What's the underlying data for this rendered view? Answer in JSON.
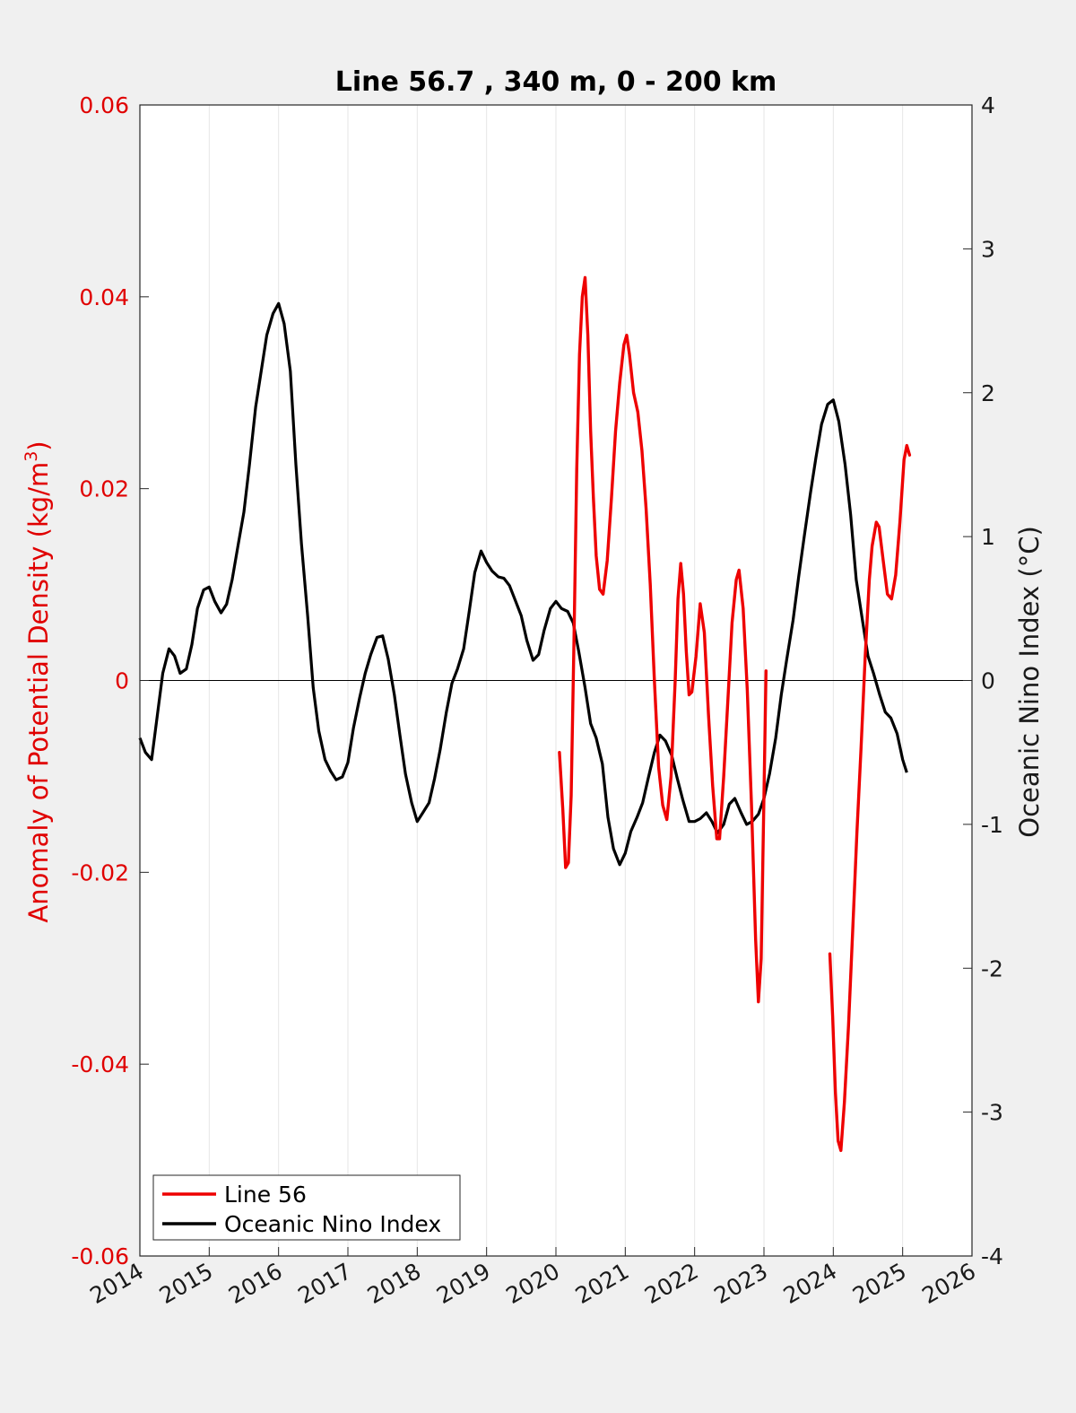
{
  "chart_data": {
    "type": "line",
    "title": "Line 56.7 , 340 m, 0 - 200 km",
    "ylabel_left": "Anomaly of Potential Density (kg/m",
    "ylabel_left_sup": "3",
    "ylabel_left_close": ")",
    "ylabel_right": "Oceanic Nino Index (°C)",
    "xlim": [
      2014,
      2026
    ],
    "ylim_left": [
      -0.06,
      0.06
    ],
    "ylim_right": [
      -4,
      4
    ],
    "x_ticks": [
      "2014",
      "2015",
      "2016",
      "2017",
      "2018",
      "2019",
      "2020",
      "2021",
      "2022",
      "2023",
      "2024",
      "2025",
      "2026"
    ],
    "y_left_ticks": [
      "-0.06",
      "-0.04",
      "-0.02",
      "0",
      "0.02",
      "0.04",
      "0.06"
    ],
    "y_right_ticks": [
      "-4",
      "-3",
      "-2",
      "-1",
      "0",
      "1",
      "2",
      "3",
      "4"
    ],
    "grid": "vertical",
    "legend_position": "bottom-left",
    "colors": {
      "line56": "#ee0000",
      "oni": "#000000",
      "left_axis": "#e00000",
      "background": "#f0f0f0"
    },
    "series": [
      {
        "name": "Line 56",
        "axis": "left",
        "segments": [
          [
            [
              2020.05,
              -0.0075
            ],
            [
              2020.1,
              -0.0135
            ],
            [
              2020.14,
              -0.0195
            ],
            [
              2020.18,
              -0.019
            ],
            [
              2020.22,
              -0.012
            ],
            [
              2020.26,
              0.004
            ],
            [
              2020.3,
              0.022
            ],
            [
              2020.34,
              0.034
            ],
            [
              2020.38,
              0.04
            ],
            [
              2020.42,
              0.042
            ],
            [
              2020.46,
              0.036
            ],
            [
              2020.5,
              0.026
            ],
            [
              2020.54,
              0.019
            ],
            [
              2020.58,
              0.013
            ],
            [
              2020.63,
              0.0095
            ],
            [
              2020.68,
              0.009
            ],
            [
              2020.74,
              0.0125
            ],
            [
              2020.8,
              0.019
            ],
            [
              2020.86,
              0.026
            ],
            [
              2020.92,
              0.031
            ],
            [
              2020.98,
              0.035
            ],
            [
              2021.02,
              0.036
            ],
            [
              2021.06,
              0.034
            ],
            [
              2021.12,
              0.03
            ],
            [
              2021.18,
              0.028
            ],
            [
              2021.24,
              0.024
            ],
            [
              2021.3,
              0.018
            ],
            [
              2021.36,
              0.01
            ],
            [
              2021.42,
              0.0
            ],
            [
              2021.48,
              -0.009
            ],
            [
              2021.54,
              -0.013
            ],
            [
              2021.6,
              -0.0145
            ],
            [
              2021.66,
              -0.01
            ],
            [
              2021.72,
              0.0
            ],
            [
              2021.76,
              0.0085
            ],
            [
              2021.8,
              0.0122
            ],
            [
              2021.84,
              0.009
            ],
            [
              2021.88,
              0.003
            ],
            [
              2021.92,
              -0.0015
            ],
            [
              2021.96,
              -0.0012
            ],
            [
              2022.02,
              0.0025
            ],
            [
              2022.08,
              0.008
            ],
            [
              2022.14,
              0.005
            ],
            [
              2022.2,
              -0.0035
            ],
            [
              2022.26,
              -0.011
            ],
            [
              2022.32,
              -0.0165
            ],
            [
              2022.36,
              -0.0165
            ],
            [
              2022.42,
              -0.01
            ],
            [
              2022.48,
              -0.002
            ],
            [
              2022.54,
              0.006
            ],
            [
              2022.6,
              0.0105
            ],
            [
              2022.64,
              0.0115
            ],
            [
              2022.7,
              0.0075
            ],
            [
              2022.76,
              -0.001
            ],
            [
              2022.82,
              -0.013
            ],
            [
              2022.88,
              -0.027
            ],
            [
              2022.92,
              -0.0335
            ],
            [
              2022.96,
              -0.029
            ],
            [
              2023.0,
              -0.012
            ],
            [
              2023.03,
              0.001
            ]
          ],
          [
            [
              2023.95,
              -0.0285
            ],
            [
              2023.99,
              -0.035
            ],
            [
              2024.03,
              -0.043
            ],
            [
              2024.07,
              -0.048
            ],
            [
              2024.11,
              -0.049
            ],
            [
              2024.16,
              -0.044
            ],
            [
              2024.22,
              -0.036
            ],
            [
              2024.28,
              -0.026
            ],
            [
              2024.34,
              -0.016
            ],
            [
              2024.4,
              -0.007
            ],
            [
              2024.46,
              0.0025
            ],
            [
              2024.52,
              0.0105
            ],
            [
              2024.56,
              0.014
            ],
            [
              2024.62,
              0.0165
            ],
            [
              2024.66,
              0.016
            ],
            [
              2024.72,
              0.0125
            ],
            [
              2024.78,
              0.009
            ],
            [
              2024.84,
              0.0085
            ],
            [
              2024.9,
              0.011
            ],
            [
              2024.96,
              0.0165
            ],
            [
              2025.02,
              0.023
            ],
            [
              2025.06,
              0.0245
            ],
            [
              2025.1,
              0.0235
            ]
          ]
        ]
      },
      {
        "name": "Oceanic Nino Index",
        "axis": "right",
        "points": [
          [
            2014.0,
            -0.4
          ],
          [
            2014.08,
            -0.5
          ],
          [
            2014.17,
            -0.55
          ],
          [
            2014.25,
            -0.25
          ],
          [
            2014.33,
            0.05
          ],
          [
            2014.42,
            0.22
          ],
          [
            2014.5,
            0.17
          ],
          [
            2014.58,
            0.05
          ],
          [
            2014.67,
            0.08
          ],
          [
            2014.75,
            0.25
          ],
          [
            2014.83,
            0.5
          ],
          [
            2014.92,
            0.63
          ],
          [
            2015.0,
            0.65
          ],
          [
            2015.08,
            0.55
          ],
          [
            2015.17,
            0.47
          ],
          [
            2015.25,
            0.53
          ],
          [
            2015.33,
            0.7
          ],
          [
            2015.42,
            0.95
          ],
          [
            2015.5,
            1.17
          ],
          [
            2015.58,
            1.5
          ],
          [
            2015.67,
            1.9
          ],
          [
            2015.75,
            2.15
          ],
          [
            2015.83,
            2.4
          ],
          [
            2015.92,
            2.55
          ],
          [
            2016.0,
            2.62
          ],
          [
            2016.08,
            2.48
          ],
          [
            2016.17,
            2.15
          ],
          [
            2016.25,
            1.5
          ],
          [
            2016.33,
            0.95
          ],
          [
            2016.42,
            0.45
          ],
          [
            2016.5,
            -0.05
          ],
          [
            2016.58,
            -0.35
          ],
          [
            2016.67,
            -0.55
          ],
          [
            2016.75,
            -0.63
          ],
          [
            2016.83,
            -0.69
          ],
          [
            2016.92,
            -0.67
          ],
          [
            2017.0,
            -0.57
          ],
          [
            2017.08,
            -0.33
          ],
          [
            2017.17,
            -0.12
          ],
          [
            2017.25,
            0.05
          ],
          [
            2017.33,
            0.18
          ],
          [
            2017.42,
            0.3
          ],
          [
            2017.5,
            0.31
          ],
          [
            2017.58,
            0.15
          ],
          [
            2017.67,
            -0.1
          ],
          [
            2017.75,
            -0.38
          ],
          [
            2017.83,
            -0.65
          ],
          [
            2017.92,
            -0.85
          ],
          [
            2018.0,
            -0.98
          ],
          [
            2018.08,
            -0.92
          ],
          [
            2018.17,
            -0.85
          ],
          [
            2018.25,
            -0.68
          ],
          [
            2018.33,
            -0.48
          ],
          [
            2018.42,
            -0.22
          ],
          [
            2018.5,
            -0.02
          ],
          [
            2018.58,
            0.08
          ],
          [
            2018.67,
            0.22
          ],
          [
            2018.75,
            0.48
          ],
          [
            2018.83,
            0.75
          ],
          [
            2018.92,
            0.9
          ],
          [
            2019.0,
            0.82
          ],
          [
            2019.08,
            0.76
          ],
          [
            2019.17,
            0.72
          ],
          [
            2019.25,
            0.71
          ],
          [
            2019.33,
            0.66
          ],
          [
            2019.42,
            0.55
          ],
          [
            2019.5,
            0.45
          ],
          [
            2019.58,
            0.28
          ],
          [
            2019.67,
            0.14
          ],
          [
            2019.75,
            0.18
          ],
          [
            2019.83,
            0.35
          ],
          [
            2019.92,
            0.5
          ],
          [
            2020.0,
            0.55
          ],
          [
            2020.08,
            0.5
          ],
          [
            2020.17,
            0.48
          ],
          [
            2020.25,
            0.4
          ],
          [
            2020.33,
            0.2
          ],
          [
            2020.42,
            -0.05
          ],
          [
            2020.5,
            -0.3
          ],
          [
            2020.58,
            -0.4
          ],
          [
            2020.67,
            -0.58
          ],
          [
            2020.75,
            -0.95
          ],
          [
            2020.83,
            -1.17
          ],
          [
            2020.92,
            -1.28
          ],
          [
            2021.0,
            -1.2
          ],
          [
            2021.08,
            -1.05
          ],
          [
            2021.17,
            -0.95
          ],
          [
            2021.25,
            -0.85
          ],
          [
            2021.33,
            -0.68
          ],
          [
            2021.42,
            -0.5
          ],
          [
            2021.5,
            -0.38
          ],
          [
            2021.58,
            -0.42
          ],
          [
            2021.67,
            -0.52
          ],
          [
            2021.75,
            -0.68
          ],
          [
            2021.83,
            -0.83
          ],
          [
            2021.92,
            -0.98
          ],
          [
            2022.0,
            -0.98
          ],
          [
            2022.08,
            -0.96
          ],
          [
            2022.17,
            -0.92
          ],
          [
            2022.25,
            -0.98
          ],
          [
            2022.33,
            -1.06
          ],
          [
            2022.42,
            -1.0
          ],
          [
            2022.5,
            -0.86
          ],
          [
            2022.58,
            -0.82
          ],
          [
            2022.67,
            -0.92
          ],
          [
            2022.75,
            -1.0
          ],
          [
            2022.83,
            -0.98
          ],
          [
            2022.92,
            -0.93
          ],
          [
            2023.0,
            -0.82
          ],
          [
            2023.08,
            -0.65
          ],
          [
            2023.17,
            -0.4
          ],
          [
            2023.25,
            -0.1
          ],
          [
            2023.33,
            0.15
          ],
          [
            2023.42,
            0.42
          ],
          [
            2023.5,
            0.72
          ],
          [
            2023.58,
            1.0
          ],
          [
            2023.67,
            1.3
          ],
          [
            2023.75,
            1.55
          ],
          [
            2023.83,
            1.78
          ],
          [
            2023.92,
            1.92
          ],
          [
            2024.0,
            1.95
          ],
          [
            2024.08,
            1.8
          ],
          [
            2024.17,
            1.5
          ],
          [
            2024.25,
            1.15
          ],
          [
            2024.33,
            0.7
          ],
          [
            2024.42,
            0.42
          ],
          [
            2024.5,
            0.17
          ],
          [
            2024.58,
            0.05
          ],
          [
            2024.67,
            -0.1
          ],
          [
            2024.75,
            -0.22
          ],
          [
            2024.83,
            -0.26
          ],
          [
            2024.92,
            -0.37
          ],
          [
            2025.0,
            -0.55
          ],
          [
            2025.06,
            -0.64
          ]
        ]
      }
    ]
  }
}
